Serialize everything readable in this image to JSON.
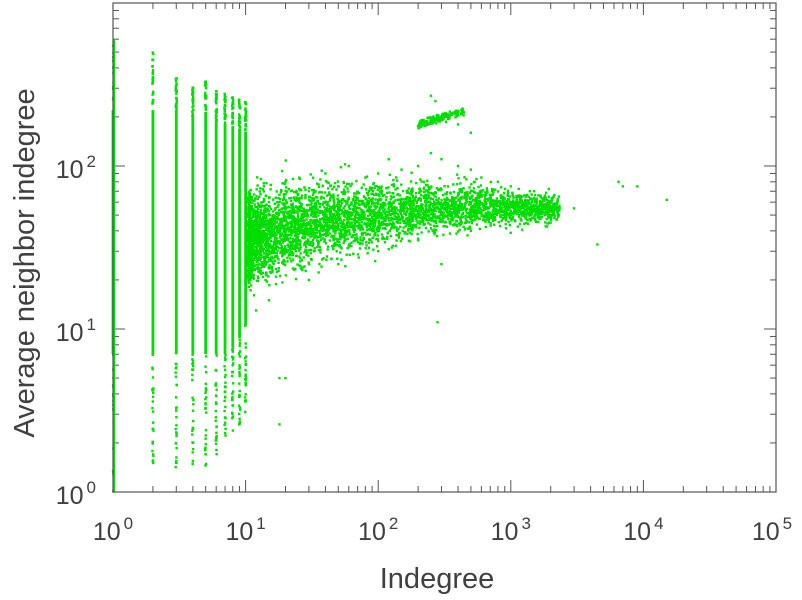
{
  "chart_data": {
    "type": "scatter",
    "xlabel": "Indegree",
    "ylabel": "Average neighbor indegree",
    "xscale": "log",
    "yscale": "log",
    "xlim": [
      1,
      100000
    ],
    "ylim": [
      1,
      1000
    ],
    "grid": false,
    "legend": "none",
    "x_ticks": [
      {
        "base": "10",
        "exp": "0",
        "value": 1
      },
      {
        "base": "10",
        "exp": "1",
        "value": 10
      },
      {
        "base": "10",
        "exp": "2",
        "value": 100
      },
      {
        "base": "10",
        "exp": "3",
        "value": 1000
      },
      {
        "base": "10",
        "exp": "4",
        "value": 10000
      },
      {
        "base": "10",
        "exp": "5",
        "value": 100000
      }
    ],
    "y_ticks": [
      {
        "base": "10",
        "exp": "0",
        "value": 1
      },
      {
        "base": "10",
        "exp": "1",
        "value": 10
      },
      {
        "base": "10",
        "exp": "2",
        "value": 100
      }
    ],
    "series": [
      {
        "color": "#00dd00",
        "columns": [
          {
            "x": 1,
            "ymin": 1,
            "ymax": 600
          },
          {
            "x": 2,
            "ymin": 1.5,
            "ymax": 500
          },
          {
            "x": 3,
            "ymin": 1.4,
            "ymax": 350
          },
          {
            "x": 4,
            "ymin": 1.4,
            "ymax": 310
          },
          {
            "x": 5,
            "ymin": 1.4,
            "ymax": 330
          },
          {
            "x": 6,
            "ymin": 1.7,
            "ymax": 290
          },
          {
            "x": 7,
            "ymin": 2.0,
            "ymax": 280
          },
          {
            "x": 8,
            "ymin": 2.2,
            "ymax": 270
          },
          {
            "x": 9,
            "ymin": 2.5,
            "ymax": 260
          },
          {
            "x": 10,
            "ymin": 3.0,
            "ymax": 250
          }
        ],
        "points": [
          [
            12,
            40
          ],
          [
            15,
            60
          ],
          [
            20,
            80
          ],
          [
            25,
            55
          ],
          [
            30,
            70
          ],
          [
            40,
            90
          ],
          [
            50,
            75
          ],
          [
            60,
            100
          ],
          [
            80,
            85
          ],
          [
            100,
            90
          ],
          [
            120,
            110
          ],
          [
            150,
            95
          ],
          [
            200,
            100
          ],
          [
            250,
            120
          ],
          [
            300,
            110
          ],
          [
            400,
            100
          ],
          [
            500,
            95
          ],
          [
            600,
            85
          ],
          [
            800,
            80
          ],
          [
            1000,
            75
          ],
          [
            1500,
            70
          ],
          [
            2000,
            60
          ],
          [
            3000,
            55
          ],
          [
            18,
            5
          ],
          [
            20,
            5
          ],
          [
            18,
            2.6
          ],
          [
            280,
            11
          ],
          [
            400,
            180
          ],
          [
            250,
            270
          ],
          [
            270,
            250
          ],
          [
            500,
            160
          ],
          [
            6500,
            80
          ],
          [
            7000,
            75
          ],
          [
            9000,
            75
          ],
          [
            15000,
            62
          ],
          [
            4500,
            33
          ],
          [
            12,
            13
          ],
          [
            15,
            15
          ],
          [
            30,
            20
          ],
          [
            50,
            25
          ],
          [
            100,
            30
          ],
          [
            200,
            35
          ],
          [
            300,
            25
          ],
          [
            500,
            40
          ],
          [
            1000,
            50
          ],
          [
            2000,
            45
          ]
        ]
      }
    ]
  }
}
